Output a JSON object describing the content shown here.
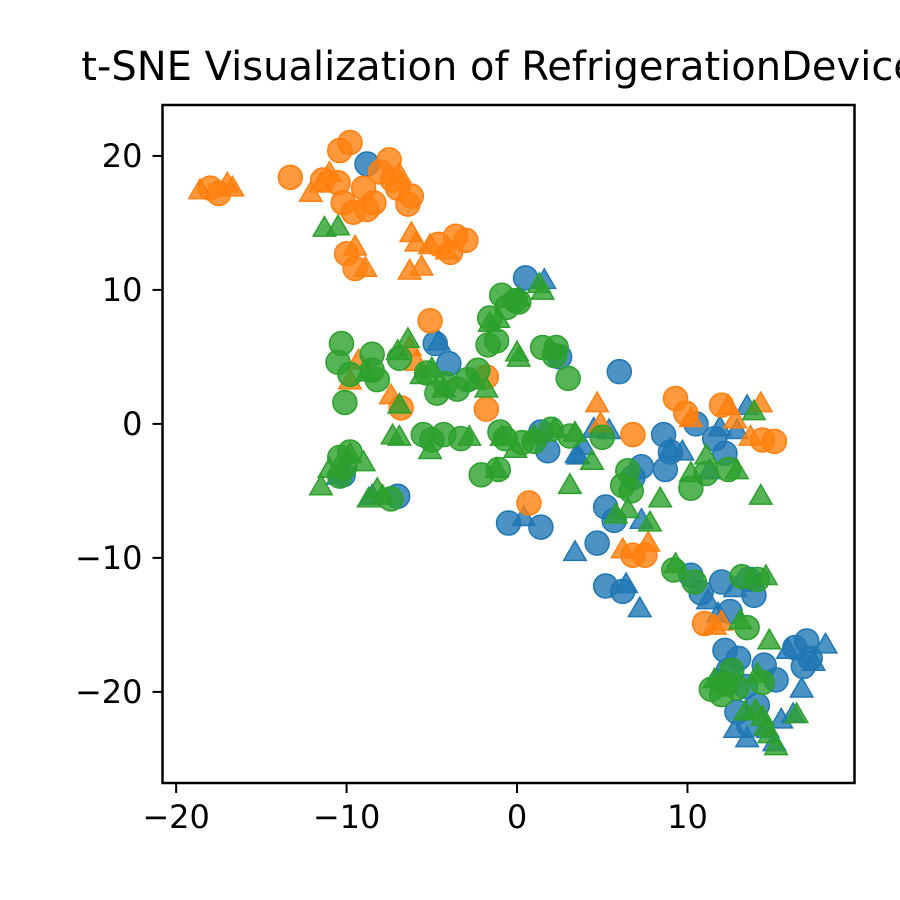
{
  "chart_data": {
    "type": "scatter",
    "title": "t-SNE Visualization of RefrigerationDevices",
    "xlim": [
      -20.8,
      19.8
    ],
    "ylim": [
      -26.8,
      23.8
    ],
    "x_ticks": [
      -20,
      -10,
      0,
      10
    ],
    "y_ticks": [
      20,
      10,
      0,
      -10,
      -20
    ],
    "x_tick_labels": [
      "−20",
      "−10",
      "0",
      "10"
    ],
    "y_tick_labels": [
      "20",
      "10",
      "0",
      "−10",
      "−20"
    ],
    "grid": false,
    "legend": "none",
    "marker_shapes": [
      "circle",
      "triangle"
    ],
    "series": [
      {
        "color": "#1f77b4",
        "circles": [
          [
            -8.8,
            19.4
          ],
          [
            0.5,
            10.9
          ],
          [
            -4.8,
            6.0
          ],
          [
            -4.0,
            4.5
          ],
          [
            2.5,
            5.0
          ],
          [
            6.0,
            3.9
          ],
          [
            -7.0,
            -5.4
          ],
          [
            -10.2,
            -3.8
          ],
          [
            1.4,
            -0.6
          ],
          [
            1.8,
            -2.0
          ],
          [
            -0.5,
            -7.4
          ],
          [
            1.4,
            -7.7
          ],
          [
            4.7,
            -8.9
          ],
          [
            5.2,
            -6.2
          ],
          [
            5.7,
            -7.2
          ],
          [
            8.6,
            -0.8
          ],
          [
            8.7,
            -3.4
          ],
          [
            6.8,
            -4.0
          ],
          [
            7.3,
            -3.2
          ],
          [
            9.0,
            -2.1
          ],
          [
            10.5,
            0.0
          ],
          [
            11.6,
            -1.1
          ],
          [
            12.2,
            -2.2
          ],
          [
            5.2,
            -12.1
          ],
          [
            6.2,
            -12.5
          ],
          [
            10.2,
            -11.3
          ],
          [
            10.8,
            -12.6
          ],
          [
            12.0,
            -11.8
          ],
          [
            13.6,
            -11.6
          ],
          [
            13.9,
            -12.8
          ],
          [
            12.5,
            -14.0
          ],
          [
            12.2,
            -16.9
          ],
          [
            12.4,
            -18.4
          ],
          [
            13.0,
            -17.5
          ],
          [
            12.0,
            -19.2
          ],
          [
            13.4,
            -19.6
          ],
          [
            14.1,
            -21.0
          ],
          [
            12.9,
            -21.5
          ],
          [
            13.6,
            -22.5
          ],
          [
            14.5,
            -18.0
          ],
          [
            15.2,
            -19.1
          ],
          [
            16.3,
            -16.7
          ],
          [
            17.0,
            -16.2
          ],
          [
            16.8,
            -18.1
          ],
          [
            17.2,
            -17.5
          ]
        ],
        "triangles": [
          [
            1.6,
            10.6
          ],
          [
            -4.6,
            6.0
          ],
          [
            4.5,
            -0.5
          ],
          [
            5.4,
            -0.6
          ],
          [
            3.5,
            -2.4
          ],
          [
            3.9,
            -1.8
          ],
          [
            3.6,
            -2.5
          ],
          [
            9.0,
            -2.0
          ],
          [
            9.7,
            -2.2
          ],
          [
            11.9,
            -0.4
          ],
          [
            12.9,
            -0.6
          ],
          [
            13.5,
            1.2
          ],
          [
            11.3,
            -3.6
          ],
          [
            3.4,
            -9.7
          ],
          [
            0.4,
            -7.1
          ],
          [
            7.2,
            -13.9
          ],
          [
            6.4,
            -12.1
          ],
          [
            7.3,
            -7.3
          ],
          [
            12.8,
            -12.4
          ],
          [
            13.8,
            -11.7
          ],
          [
            11.2,
            -13.3
          ],
          [
            11.8,
            -14.3
          ],
          [
            15.9,
            -17.0
          ],
          [
            17.4,
            -17.9
          ],
          [
            18.1,
            -16.6
          ],
          [
            16.7,
            -19.9
          ],
          [
            12.8,
            -22.9
          ],
          [
            13.5,
            -23.6
          ],
          [
            15.1,
            -23.9
          ],
          [
            14.7,
            -22.9
          ],
          [
            15.5,
            -22.2
          ],
          [
            16.2,
            -21.8
          ],
          [
            -10.5,
            -4.0
          ],
          [
            -8.5,
            -5.5
          ]
        ]
      },
      {
        "color": "#ff7f0e",
        "circles": [
          [
            -17.5,
            17.2
          ],
          [
            -18.0,
            17.6
          ],
          [
            -13.3,
            18.4
          ],
          [
            -11.4,
            18.2
          ],
          [
            -10.4,
            20.4
          ],
          [
            -9.8,
            21.0
          ],
          [
            -10.5,
            18.0
          ],
          [
            -9.0,
            17.6
          ],
          [
            -8.0,
            18.8
          ],
          [
            -7.3,
            18.2
          ],
          [
            -7.5,
            19.7
          ],
          [
            -8.4,
            16.5
          ],
          [
            -9.6,
            15.8
          ],
          [
            -10.2,
            16.5
          ],
          [
            -8.8,
            16.0
          ],
          [
            -7.0,
            17.6
          ],
          [
            -6.4,
            16.4
          ],
          [
            -6.2,
            17.0
          ],
          [
            -10.0,
            12.7
          ],
          [
            -9.5,
            11.6
          ],
          [
            -4.6,
            13.4
          ],
          [
            -3.9,
            12.8
          ],
          [
            -3.6,
            14.0
          ],
          [
            -3.0,
            13.7
          ],
          [
            -5.1,
            7.7
          ],
          [
            -1.8,
            3.5
          ],
          [
            -1.8,
            1.1
          ],
          [
            0.7,
            -5.9
          ],
          [
            9.3,
            1.9
          ],
          [
            9.9,
            0.8
          ],
          [
            12.0,
            1.4
          ],
          [
            14.4,
            -1.2
          ],
          [
            15.1,
            -1.3
          ],
          [
            6.8,
            -0.8
          ],
          [
            7.5,
            -9.8
          ],
          [
            6.8,
            -9.8
          ],
          [
            11.0,
            -14.9
          ],
          [
            -6.8,
            1.2
          ]
        ],
        "triangles": [
          [
            -17.0,
            17.8
          ],
          [
            -18.6,
            17.3
          ],
          [
            -16.7,
            17.5
          ],
          [
            -11.5,
            17.8
          ],
          [
            -12.1,
            17.1
          ],
          [
            -11.0,
            18.6
          ],
          [
            -6.9,
            18.5
          ],
          [
            -9.5,
            13.1
          ],
          [
            -8.9,
            11.5
          ],
          [
            -5.9,
            13.4
          ],
          [
            -6.3,
            11.3
          ],
          [
            -5.6,
            11.6
          ],
          [
            -5.1,
            13.2
          ],
          [
            -6.2,
            14.1
          ],
          [
            -4.1,
            12.8
          ],
          [
            -9.3,
            4.6
          ],
          [
            -9.8,
            3.1
          ],
          [
            -7.4,
            2.0
          ],
          [
            -5.9,
            4.5
          ],
          [
            -6.3,
            5.6
          ],
          [
            4.9,
            -0.1
          ],
          [
            4.7,
            1.4
          ],
          [
            10.2,
            0.3
          ],
          [
            12.4,
            1.2
          ],
          [
            12.8,
            0.2
          ],
          [
            14.3,
            1.4
          ],
          [
            13.7,
            -1.1
          ],
          [
            6.2,
            -9.5
          ],
          [
            7.7,
            -9.0
          ],
          [
            12.0,
            -14.9
          ],
          [
            11.6,
            -15.2
          ]
        ]
      },
      {
        "color": "#2ca02c",
        "circles": [
          [
            -10.3,
            6.0
          ],
          [
            -10.5,
            4.6
          ],
          [
            -9.8,
            3.7
          ],
          [
            -8.2,
            3.3
          ],
          [
            -8.5,
            4.0
          ],
          [
            -8.5,
            5.2
          ],
          [
            -6.9,
            4.9
          ],
          [
            -5.3,
            3.8
          ],
          [
            -4.7,
            2.3
          ],
          [
            -3.5,
            2.6
          ],
          [
            -4.2,
            3.0
          ],
          [
            -2.9,
            3.3
          ],
          [
            -2.3,
            4.0
          ],
          [
            -1.7,
            5.9
          ],
          [
            -1.6,
            7.9
          ],
          [
            -1.2,
            6.2
          ],
          [
            -0.9,
            9.6
          ],
          [
            -0.1,
            9.2
          ],
          [
            -0.6,
            8.7
          ],
          [
            0.1,
            9.1
          ],
          [
            2.3,
            5.7
          ],
          [
            2.2,
            5.1
          ],
          [
            3.0,
            3.4
          ],
          [
            1.5,
            5.7
          ],
          [
            -10.1,
            1.6
          ],
          [
            -10.4,
            -2.5
          ],
          [
            -10.1,
            -3.2
          ],
          [
            -9.8,
            -2.1
          ],
          [
            -10.4,
            -3.9
          ],
          [
            -7.4,
            -5.6
          ],
          [
            -5.0,
            -1.2
          ],
          [
            -3.3,
            -1.1
          ],
          [
            -4.3,
            -0.8
          ],
          [
            -5.5,
            -0.8
          ],
          [
            -0.7,
            -1.1
          ],
          [
            -1.0,
            -0.6
          ],
          [
            1.0,
            -1.3
          ],
          [
            0.3,
            -1.4
          ],
          [
            2.0,
            -0.4
          ],
          [
            -1.1,
            -3.4
          ],
          [
            -2.1,
            -3.8
          ],
          [
            3.1,
            -0.9
          ],
          [
            6.2,
            -4.6
          ],
          [
            6.5,
            -3.5
          ],
          [
            6.7,
            -5.0
          ],
          [
            5.0,
            -1.0
          ],
          [
            11.1,
            -3.7
          ],
          [
            12.4,
            -3.4
          ],
          [
            10.2,
            -4.8
          ],
          [
            9.2,
            -10.9
          ],
          [
            10.4,
            -11.8
          ],
          [
            13.2,
            -11.4
          ],
          [
            14.1,
            -11.6
          ],
          [
            13.5,
            -15.2
          ],
          [
            12.2,
            -19.4
          ],
          [
            12.0,
            -20.2
          ],
          [
            12.9,
            -19.7
          ],
          [
            11.4,
            -19.8
          ],
          [
            14.4,
            -19.3
          ],
          [
            12.6,
            -18.4
          ]
        ],
        "triangles": [
          [
            -11.3,
            14.5
          ],
          [
            -10.5,
            14.6
          ],
          [
            -6.9,
            1.3
          ],
          [
            -8.8,
            3.7
          ],
          [
            -7.0,
            5.3
          ],
          [
            -5.6,
            3.5
          ],
          [
            -6.4,
            6.2
          ],
          [
            -4.3,
            2.5
          ],
          [
            -5.0,
            4.0
          ],
          [
            -2.5,
            3.1
          ],
          [
            -1.6,
            7.4
          ],
          [
            -1.1,
            7.7
          ],
          [
            -1.8,
            2.5
          ],
          [
            0.1,
            4.8
          ],
          [
            0.1,
            9.3
          ],
          [
            1.5,
            9.8
          ],
          [
            1.3,
            10.3
          ],
          [
            0.0,
            5.2
          ],
          [
            -7.3,
            -1.0
          ],
          [
            -9.8,
            -2.4
          ],
          [
            -9.0,
            -3.0
          ],
          [
            -11.0,
            -3.5
          ],
          [
            -11.5,
            -4.8
          ],
          [
            -8.7,
            -5.7
          ],
          [
            -7.9,
            -5.5
          ],
          [
            -8.2,
            -5.0
          ],
          [
            -6.9,
            -1.1
          ],
          [
            -5.1,
            -2.1
          ],
          [
            -2.8,
            -1.1
          ],
          [
            -1.2,
            -3.5
          ],
          [
            -0.1,
            -2.0
          ],
          [
            -0.9,
            -1.1
          ],
          [
            1.0,
            -1.0
          ],
          [
            3.4,
            -0.8
          ],
          [
            2.2,
            -0.5
          ],
          [
            3.1,
            -4.7
          ],
          [
            4.4,
            -2.9
          ],
          [
            5.8,
            -6.9
          ],
          [
            6.5,
            -6.5
          ],
          [
            7.8,
            -7.5
          ],
          [
            8.4,
            -5.7
          ],
          [
            10.2,
            -3.8
          ],
          [
            11.1,
            -2.5
          ],
          [
            12.9,
            -3.6
          ],
          [
            13.9,
            0.8
          ],
          [
            14.3,
            -5.5
          ],
          [
            9.3,
            -10.6
          ],
          [
            13.1,
            -14.8
          ],
          [
            14.6,
            -11.5
          ],
          [
            11.6,
            -19.2
          ],
          [
            12.2,
            -19.4
          ],
          [
            14.0,
            -21.5
          ],
          [
            14.6,
            -22.7
          ],
          [
            14.8,
            -23.3
          ],
          [
            15.2,
            -24.2
          ],
          [
            14.4,
            -22.0
          ],
          [
            16.4,
            -21.8
          ],
          [
            14.8,
            -16.3
          ],
          [
            14.1,
            -18.8
          ],
          [
            13.4,
            -21.6
          ]
        ]
      }
    ]
  }
}
